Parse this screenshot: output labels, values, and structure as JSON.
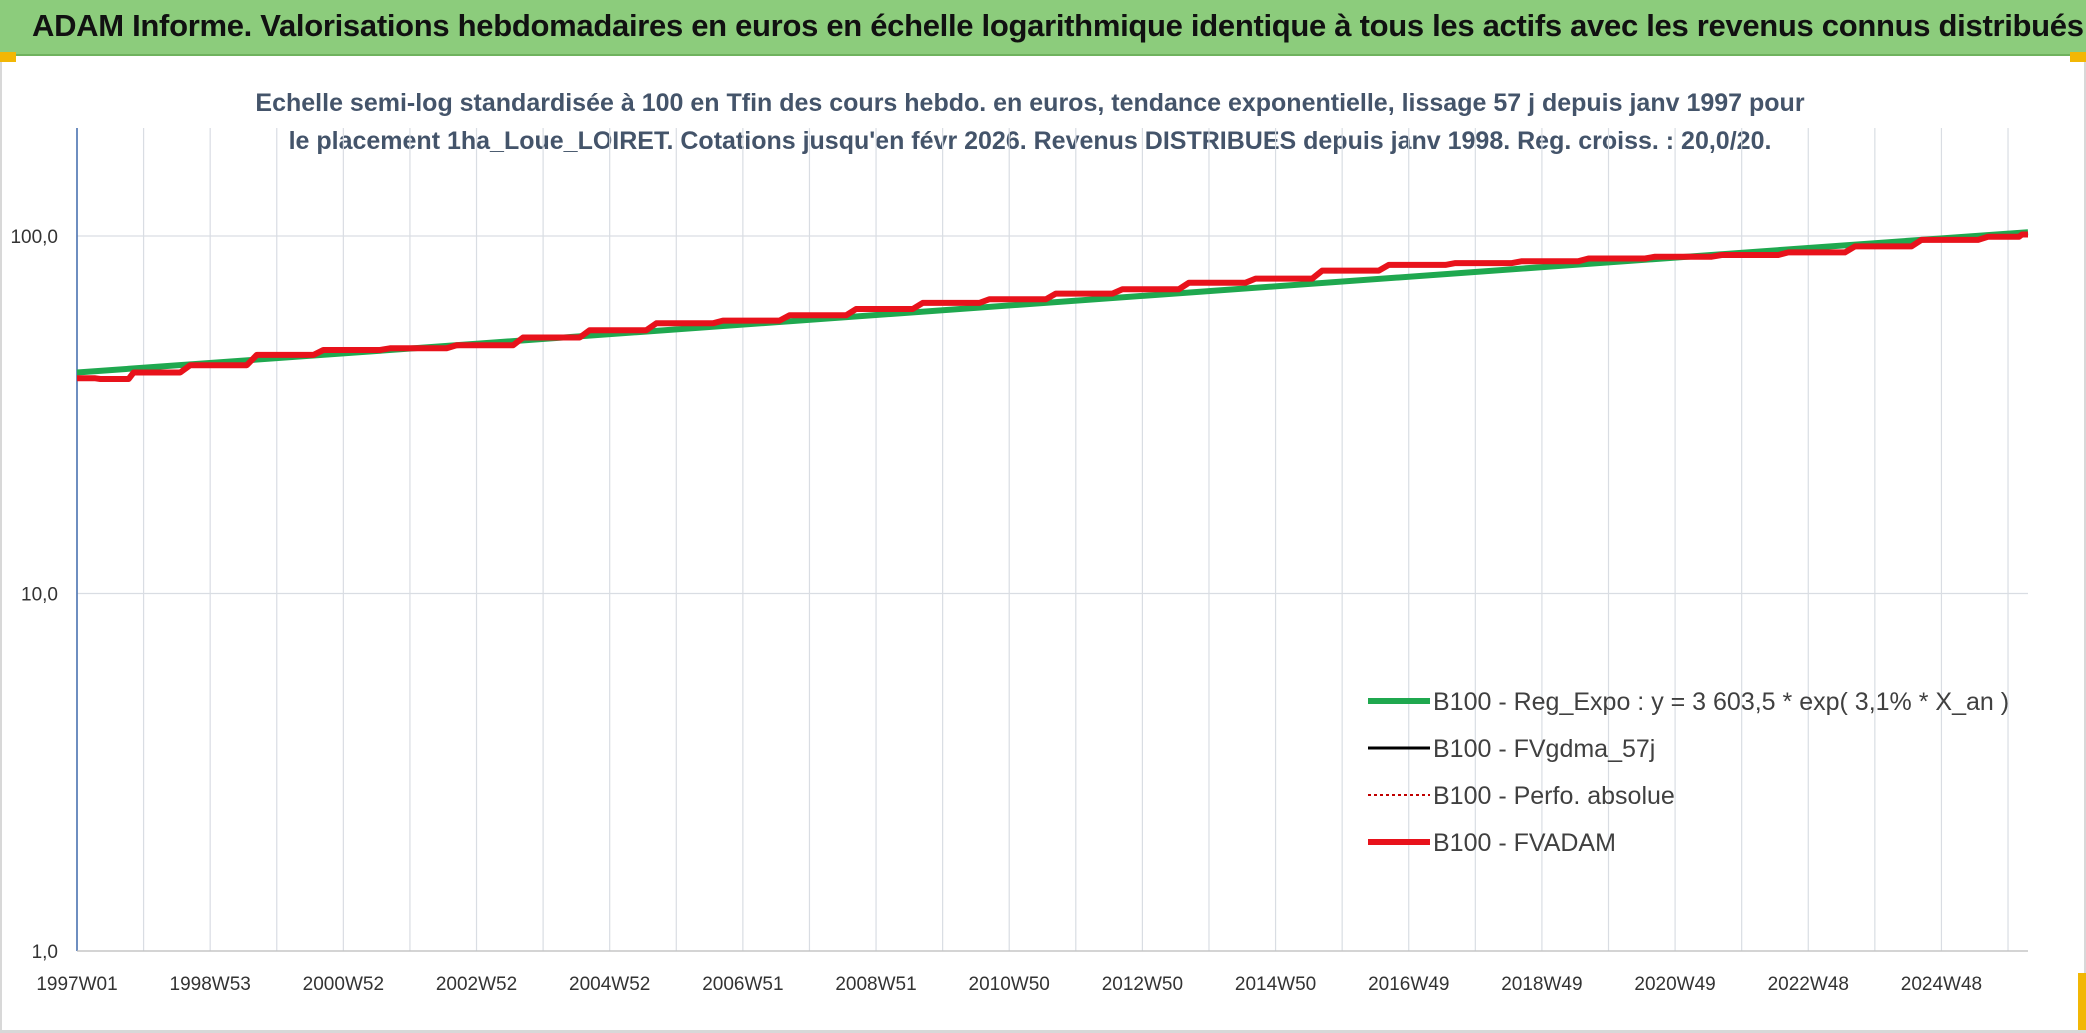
{
  "header": {
    "title": "ADAM Informe. Valorisations hebdomadaires en euros en échelle logarithmique identique à tous les actifs avec les revenus connus distribués"
  },
  "chart_data": {
    "type": "line",
    "title": "Echelle semi-log standardisée à 100 en Tfin des cours hebdo. en euros, tendance exponentielle, lissage 57 j depuis janv 1997 pour le placement 1ha_Loue_LOIRET. Cotations jusqu'en févr 2026. Revenus DISTRIBUES depuis janv 1998. Reg. croiss. : 20,0/20.",
    "y_scale": "log",
    "ylim": [
      1,
      100
    ],
    "y_ticks": [
      {
        "value": 100,
        "label": "100,0"
      },
      {
        "value": 10,
        "label": "10,0"
      },
      {
        "value": 1,
        "label": "1,0"
      }
    ],
    "x_range": [
      1997.0,
      2026.3
    ],
    "x_ticks": [
      "1997W01",
      "1998W53",
      "2000W52",
      "2002W52",
      "2004W52",
      "2006W51",
      "2008W51",
      "2010W50",
      "2012W50",
      "2014W50",
      "2016W49",
      "2018W49",
      "2020W49",
      "2022W48",
      "2024W48"
    ],
    "grid": true,
    "legend_position": "bottom-right",
    "series": [
      {
        "name": "B100 - Reg_Expo : y = 3 603,5 * exp( 3,1% *  X_an )",
        "color": "#1fa84f",
        "style": "solid-thick",
        "x": [
          1997.0,
          2026.3
        ],
        "y": [
          41.5,
          102.5
        ]
      },
      {
        "name": "B100 - FVgdma_57j",
        "color": "#000000",
        "style": "solid-thin",
        "x": [],
        "y": []
      },
      {
        "name": "B100 - Perfo. absolue",
        "color": "#c00000",
        "style": "dotted",
        "x": [],
        "y": []
      },
      {
        "name": "B100 - FVADAM",
        "color": "#e8121b",
        "style": "solid-thick",
        "x": [
          1997.0,
          1997.5,
          1998.0,
          1999.0,
          2000.0,
          2001.0,
          2002.0,
          2003.0,
          2004.0,
          2005.0,
          2006.0,
          2007.0,
          2008.0,
          2009.0,
          2010.0,
          2011.0,
          2012.0,
          2013.0,
          2014.0,
          2015.0,
          2016.0,
          2017.0,
          2018.0,
          2019.0,
          2020.0,
          2021.0,
          2022.0,
          2023.0,
          2024.0,
          2025.0,
          2026.0,
          2026.3
        ],
        "y": [
          40.0,
          39.8,
          41.5,
          43.5,
          46.5,
          48.0,
          48.5,
          49.5,
          52.0,
          54.5,
          57.0,
          58.0,
          60.0,
          62.5,
          65.0,
          66.5,
          69.0,
          71.0,
          74.0,
          76.0,
          80.0,
          83.0,
          84.0,
          85.0,
          86.5,
          87.5,
          88.5,
          90.0,
          93.5,
          97.5,
          99.5,
          101.0
        ]
      }
    ]
  }
}
